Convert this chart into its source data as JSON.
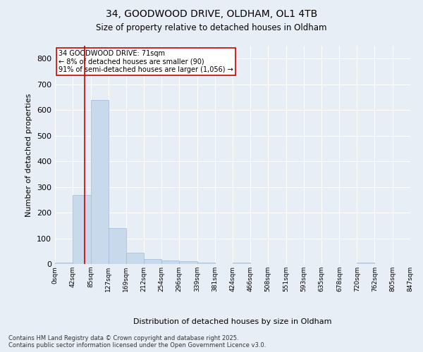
{
  "title1": "34, GOODWOOD DRIVE, OLDHAM, OL1 4TB",
  "title2": "Size of property relative to detached houses in Oldham",
  "xlabel": "Distribution of detached houses by size in Oldham",
  "ylabel": "Number of detached properties",
  "bar_color": "#c9d9ec",
  "bar_edgecolor": "#a0b8d8",
  "background_color": "#e8eef5",
  "vline_x": 71,
  "vline_color": "#cc0000",
  "annotation_text": "34 GOODWOOD DRIVE: 71sqm\n← 8% of detached houses are smaller (90)\n91% of semi-detached houses are larger (1,056) →",
  "annotation_box_color": "#ffffff",
  "annotation_box_edgecolor": "#cc0000",
  "footer_text": "Contains HM Land Registry data © Crown copyright and database right 2025.\nContains public sector information licensed under the Open Government Licence v3.0.",
  "bin_edges": [
    0,
    42,
    85,
    127,
    169,
    212,
    254,
    296,
    339,
    381,
    424,
    466,
    508,
    551,
    593,
    635,
    678,
    720,
    762,
    805,
    847
  ],
  "bar_heights": [
    5,
    270,
    640,
    140,
    45,
    20,
    15,
    10,
    5,
    0,
    5,
    0,
    0,
    0,
    0,
    0,
    0,
    5,
    0,
    0
  ],
  "ylim": [
    0,
    850
  ],
  "yticks": [
    0,
    100,
    200,
    300,
    400,
    500,
    600,
    700,
    800
  ],
  "figsize": [
    6.0,
    5.0
  ],
  "dpi": 100
}
